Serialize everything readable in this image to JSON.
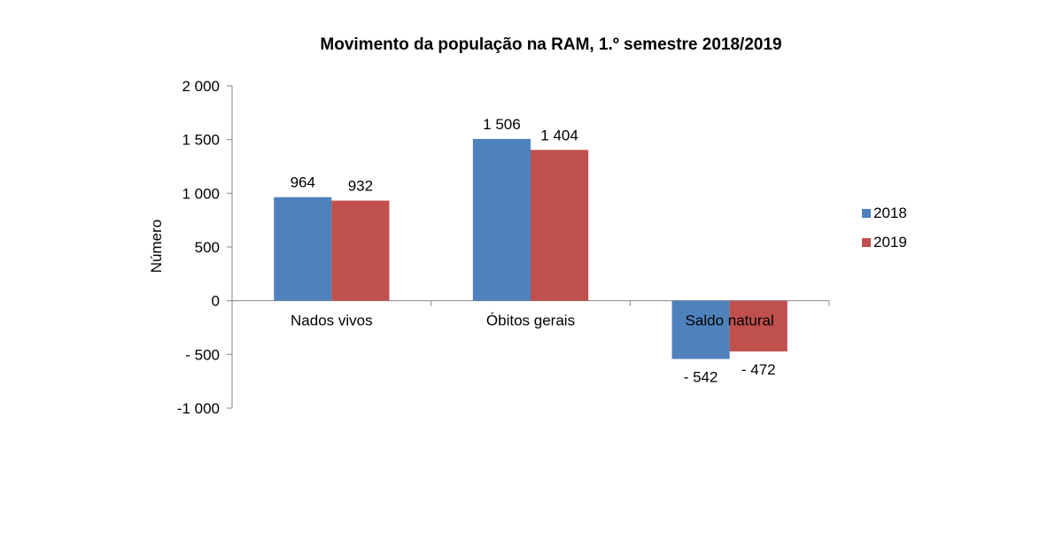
{
  "chart_data": {
    "type": "bar",
    "title": "Movimento da população na RAM, 1.º semestre 2018/2019",
    "xlabel": "",
    "ylabel": "Número",
    "ylim": [
      -1000,
      2000
    ],
    "yticks": [
      2000,
      1500,
      1000,
      500,
      0,
      -500,
      -1000
    ],
    "ytick_labels": [
      "2 000",
      "1 500",
      "1 000",
      "500",
      "0",
      "- 500",
      "-1 000"
    ],
    "categories": [
      "Nados vivos",
      "Óbitos gerais",
      "Saldo natural"
    ],
    "series": [
      {
        "name": "2018",
        "color": "#4f81bd",
        "values": [
          964,
          1506,
          -542
        ],
        "labels": [
          "964",
          "1 506",
          "- 542"
        ]
      },
      {
        "name": "2019",
        "color": "#c0504d",
        "values": [
          932,
          1404,
          -472
        ],
        "labels": [
          "932",
          "1 404",
          "- 472"
        ]
      }
    ],
    "grid": false,
    "legend_position": "right"
  }
}
